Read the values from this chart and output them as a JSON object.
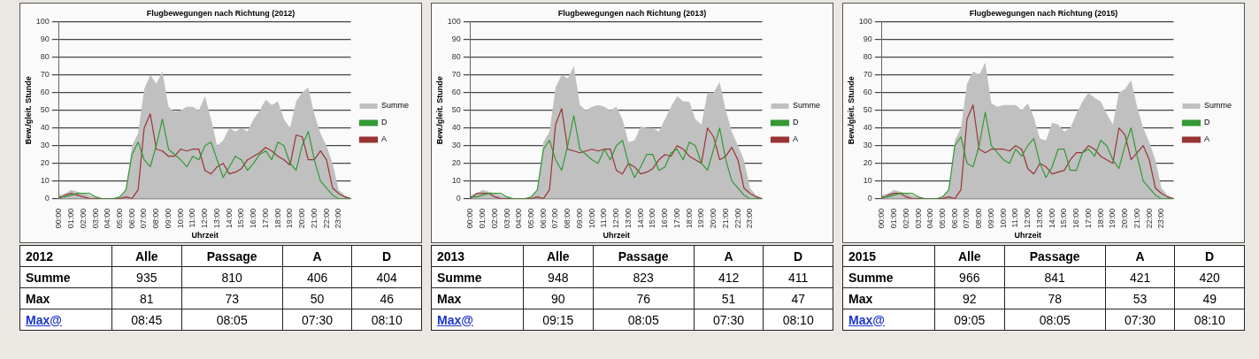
{
  "chart_data": [
    {
      "type": "line",
      "title": "Flugbewegungen nach Richtung (2012)",
      "xlabel": "Uhrzeit",
      "ylabel": "Bew./gleit. Stunde",
      "x": [
        0,
        0.5,
        1,
        1.5,
        2,
        2.5,
        3,
        3.5,
        4,
        4.5,
        5,
        5.5,
        6,
        6.5,
        7,
        7.5,
        8,
        8.5,
        9,
        9.5,
        10,
        10.5,
        11,
        11.5,
        12,
        12.5,
        13,
        13.5,
        14,
        14.5,
        15,
        15.5,
        16,
        16.5,
        17,
        17.5,
        18,
        18.5,
        19,
        19.5,
        20,
        20.5,
        21,
        21.5,
        22,
        22.5,
        23,
        23.5,
        24
      ],
      "xlim": [
        0,
        24
      ],
      "xticks": [
        {
          "value": 0,
          "label": "00:00"
        },
        {
          "value": 1,
          "label": "01:00"
        },
        {
          "value": 2,
          "label": "02:00"
        },
        {
          "value": 3,
          "label": "03:00"
        },
        {
          "value": 4,
          "label": "04:00"
        },
        {
          "value": 5,
          "label": "05:00"
        },
        {
          "value": 6,
          "label": "06:00"
        },
        {
          "value": 7,
          "label": "07:00"
        },
        {
          "value": 8,
          "label": "08:00"
        },
        {
          "value": 9,
          "label": "09:00"
        },
        {
          "value": 10,
          "label": "10:00"
        },
        {
          "value": 11,
          "label": "11:00"
        },
        {
          "value": 12,
          "label": "12:00"
        },
        {
          "value": 13,
          "label": "13:00"
        },
        {
          "value": 14,
          "label": "14:00"
        },
        {
          "value": 15,
          "label": "15:00"
        },
        {
          "value": 16,
          "label": "16:00"
        },
        {
          "value": 17,
          "label": "17:00"
        },
        {
          "value": 18,
          "label": "18:00"
        },
        {
          "value": 19,
          "label": "19:00"
        },
        {
          "value": 20,
          "label": "20:00"
        },
        {
          "value": 21,
          "label": "21:00"
        },
        {
          "value": 22,
          "label": "22:00"
        },
        {
          "value": 23,
          "label": "23:00"
        }
      ],
      "ylim": [
        0,
        100
      ],
      "yticks": [
        0,
        10,
        20,
        30,
        40,
        50,
        60,
        70,
        80,
        90,
        100
      ],
      "grid": "y",
      "legend": "right",
      "series": [
        {
          "name": "Summe",
          "type": "area",
          "color": "#c0c0c0",
          "values": [
            2,
            3,
            5,
            4,
            3,
            2,
            1,
            0,
            0,
            0,
            1,
            5,
            30,
            37,
            62,
            70,
            65,
            72,
            52,
            49,
            50,
            52,
            52,
            50,
            58,
            45,
            30,
            33,
            40,
            38,
            40,
            38,
            45,
            50,
            56,
            53,
            55,
            45,
            40,
            55,
            60,
            63,
            48,
            37,
            30,
            20,
            5,
            2,
            0
          ]
        },
        {
          "name": "D",
          "type": "line",
          "color": "#339933",
          "values": [
            1,
            1,
            2,
            3,
            3,
            3,
            1,
            0,
            0,
            0,
            1,
            5,
            25,
            32,
            22,
            18,
            30,
            45,
            28,
            25,
            22,
            18,
            24,
            22,
            30,
            32,
            22,
            12,
            18,
            24,
            22,
            16,
            20,
            25,
            27,
            22,
            32,
            30,
            20,
            16,
            30,
            38,
            22,
            10,
            6,
            2,
            0,
            0,
            0
          ]
        },
        {
          "name": "A",
          "type": "line",
          "color": "#993333",
          "values": [
            0,
            2,
            3,
            2,
            1,
            0,
            0,
            0,
            0,
            0,
            0,
            1,
            0,
            5,
            40,
            48,
            28,
            27,
            24,
            24,
            28,
            27,
            28,
            28,
            16,
            14,
            18,
            20,
            14,
            15,
            17,
            22,
            24,
            26,
            29,
            27,
            24,
            22,
            19,
            36,
            35,
            22,
            22,
            27,
            22,
            6,
            3,
            1,
            0
          ]
        }
      ]
    },
    {
      "type": "other",
      "title": "2012",
      "categories": [
        "Alle",
        "Passage",
        "A",
        "D"
      ],
      "y_categories": [
        "Summe",
        "Max",
        "Max@"
      ],
      "cell_labels": [
        [
          "935",
          "810",
          "406",
          "404"
        ],
        [
          "81",
          "73",
          "50",
          "46"
        ],
        [
          "08:45",
          "08:05",
          "07:30",
          "08:10"
        ]
      ]
    },
    {
      "type": "line",
      "title": "Flugbewegungen nach Richtung (2013)",
      "xlabel": "Uhrzeit",
      "ylabel": "Bew./gleit. Stunde",
      "x": [
        0,
        0.5,
        1,
        1.5,
        2,
        2.5,
        3,
        3.5,
        4,
        4.5,
        5,
        5.5,
        6,
        6.5,
        7,
        7.5,
        8,
        8.5,
        9,
        9.5,
        10,
        10.5,
        11,
        11.5,
        12,
        12.5,
        13,
        13.5,
        14,
        14.5,
        15,
        15.5,
        16,
        16.5,
        17,
        17.5,
        18,
        18.5,
        19,
        19.5,
        20,
        20.5,
        21,
        21.5,
        22,
        22.5,
        23,
        23.5,
        24
      ],
      "xlim": [
        0,
        24
      ],
      "xticks": [
        {
          "value": 0,
          "label": "00:00"
        },
        {
          "value": 1,
          "label": "01:00"
        },
        {
          "value": 2,
          "label": "02:00"
        },
        {
          "value": 3,
          "label": "03:00"
        },
        {
          "value": 4,
          "label": "04:00"
        },
        {
          "value": 5,
          "label": "05:00"
        },
        {
          "value": 6,
          "label": "06:00"
        },
        {
          "value": 7,
          "label": "07:00"
        },
        {
          "value": 8,
          "label": "08:00"
        },
        {
          "value": 9,
          "label": "09:00"
        },
        {
          "value": 10,
          "label": "10:00"
        },
        {
          "value": 11,
          "label": "11:00"
        },
        {
          "value": 12,
          "label": "12:00"
        },
        {
          "value": 13,
          "label": "13:00"
        },
        {
          "value": 14,
          "label": "14:00"
        },
        {
          "value": 15,
          "label": "15:00"
        },
        {
          "value": 16,
          "label": "16:00"
        },
        {
          "value": 17,
          "label": "17:00"
        },
        {
          "value": 18,
          "label": "18:00"
        },
        {
          "value": 19,
          "label": "19:00"
        },
        {
          "value": 20,
          "label": "20:00"
        },
        {
          "value": 21,
          "label": "21:00"
        },
        {
          "value": 22,
          "label": "22:00"
        },
        {
          "value": 23,
          "label": "23:00"
        }
      ],
      "ylim": [
        0,
        100
      ],
      "yticks": [
        0,
        10,
        20,
        30,
        40,
        50,
        60,
        70,
        80,
        90,
        100
      ],
      "grid": "y",
      "legend": "right",
      "series": [
        {
          "name": "Summe",
          "type": "area",
          "color": "#c0c0c0",
          "values": [
            2,
            3,
            5,
            4,
            3,
            2,
            1,
            0,
            0,
            0,
            1,
            5,
            32,
            38,
            63,
            70,
            68,
            75,
            53,
            50,
            52,
            53,
            52,
            50,
            52,
            45,
            32,
            33,
            41,
            40,
            40,
            38,
            45,
            52,
            58,
            55,
            55,
            45,
            42,
            60,
            60,
            66,
            50,
            38,
            30,
            22,
            6,
            2,
            0
          ]
        },
        {
          "name": "D",
          "type": "line",
          "color": "#339933",
          "values": [
            1,
            1,
            2,
            3,
            3,
            3,
            1,
            0,
            0,
            0,
            1,
            5,
            28,
            33,
            22,
            16,
            30,
            47,
            28,
            25,
            22,
            20,
            28,
            22,
            30,
            33,
            20,
            12,
            18,
            25,
            25,
            16,
            18,
            26,
            28,
            22,
            32,
            30,
            20,
            16,
            28,
            40,
            22,
            10,
            6,
            2,
            0,
            0,
            0
          ]
        },
        {
          "name": "A",
          "type": "line",
          "color": "#993333",
          "values": [
            0,
            3,
            3,
            3,
            1,
            0,
            0,
            0,
            0,
            0,
            0,
            1,
            0,
            5,
            42,
            51,
            28,
            27,
            26,
            27,
            28,
            27,
            28,
            28,
            16,
            14,
            20,
            18,
            14,
            15,
            17,
            22,
            25,
            24,
            30,
            28,
            24,
            22,
            20,
            40,
            35,
            22,
            24,
            29,
            22,
            6,
            3,
            1,
            0
          ]
        }
      ]
    },
    {
      "type": "other",
      "title": "2013",
      "categories": [
        "Alle",
        "Passage",
        "A",
        "D"
      ],
      "y_categories": [
        "Summe",
        "Max",
        "Max@"
      ],
      "cell_labels": [
        [
          "948",
          "823",
          "412",
          "411"
        ],
        [
          "90",
          "76",
          "51",
          "47"
        ],
        [
          "09:15",
          "08:05",
          "07:30",
          "08:10"
        ]
      ]
    },
    {
      "type": "line",
      "title": "Flugbewegungen nach Richtung (2015)",
      "xlabel": "Uhrzeit",
      "ylabel": "Bew./gleit. Stunde",
      "x": [
        0,
        0.5,
        1,
        1.5,
        2,
        2.5,
        3,
        3.5,
        4,
        4.5,
        5,
        5.5,
        6,
        6.5,
        7,
        7.5,
        8,
        8.5,
        9,
        9.5,
        10,
        10.5,
        11,
        11.5,
        12,
        12.5,
        13,
        13.5,
        14,
        14.5,
        15,
        15.5,
        16,
        16.5,
        17,
        17.5,
        18,
        18.5,
        19,
        19.5,
        20,
        20.5,
        21,
        21.5,
        22,
        22.5,
        23,
        23.5,
        24
      ],
      "xlim": [
        0,
        24
      ],
      "xticks": [
        {
          "value": 0,
          "label": "00:00"
        },
        {
          "value": 1,
          "label": "01:00"
        },
        {
          "value": 2,
          "label": "02:00"
        },
        {
          "value": 3,
          "label": "03:00"
        },
        {
          "value": 4,
          "label": "04:00"
        },
        {
          "value": 5,
          "label": "05:00"
        },
        {
          "value": 6,
          "label": "06:00"
        },
        {
          "value": 7,
          "label": "07:00"
        },
        {
          "value": 8,
          "label": "08:00"
        },
        {
          "value": 9,
          "label": "09:00"
        },
        {
          "value": 10,
          "label": "10:00"
        },
        {
          "value": 11,
          "label": "11:00"
        },
        {
          "value": 12,
          "label": "12:00"
        },
        {
          "value": 13,
          "label": "13:00"
        },
        {
          "value": 14,
          "label": "14:00"
        },
        {
          "value": 15,
          "label": "15:00"
        },
        {
          "value": 16,
          "label": "16:00"
        },
        {
          "value": 17,
          "label": "17:00"
        },
        {
          "value": 18,
          "label": "18:00"
        },
        {
          "value": 19,
          "label": "19:00"
        },
        {
          "value": 20,
          "label": "20:00"
        },
        {
          "value": 21,
          "label": "21:00"
        },
        {
          "value": 22,
          "label": "22:00"
        },
        {
          "value": 23,
          "label": "23:00"
        }
      ],
      "ylim": [
        0,
        100
      ],
      "yticks": [
        0,
        10,
        20,
        30,
        40,
        50,
        60,
        70,
        80,
        90,
        100
      ],
      "grid": "y",
      "legend": "right",
      "series": [
        {
          "name": "Summe",
          "type": "area",
          "color": "#c0c0c0",
          "values": [
            2,
            3,
            5,
            4,
            3,
            2,
            1,
            0,
            0,
            0,
            1,
            5,
            33,
            40,
            65,
            72,
            70,
            77,
            54,
            52,
            53,
            53,
            53,
            50,
            54,
            46,
            34,
            33,
            43,
            42,
            38,
            40,
            48,
            55,
            60,
            57,
            55,
            48,
            42,
            60,
            62,
            67,
            52,
            40,
            32,
            22,
            6,
            2,
            0
          ]
        },
        {
          "name": "D",
          "type": "line",
          "color": "#339933",
          "values": [
            1,
            1,
            2,
            3,
            3,
            3,
            1,
            0,
            0,
            0,
            1,
            5,
            30,
            35,
            20,
            18,
            30,
            49,
            30,
            26,
            22,
            20,
            28,
            24,
            30,
            34,
            20,
            12,
            18,
            28,
            28,
            16,
            16,
            26,
            28,
            24,
            33,
            30,
            22,
            17,
            30,
            40,
            24,
            10,
            6,
            2,
            0,
            0,
            0
          ]
        },
        {
          "name": "A",
          "type": "line",
          "color": "#993333",
          "values": [
            0,
            2,
            3,
            3,
            1,
            0,
            0,
            0,
            0,
            0,
            0,
            1,
            0,
            5,
            45,
            53,
            28,
            26,
            28,
            28,
            28,
            27,
            30,
            28,
            17,
            14,
            20,
            18,
            14,
            15,
            16,
            22,
            26,
            26,
            30,
            28,
            24,
            22,
            20,
            40,
            36,
            22,
            26,
            30,
            22,
            6,
            3,
            1,
            0
          ]
        }
      ]
    },
    {
      "type": "other",
      "title": "2015",
      "categories": [
        "Alle",
        "Passage",
        "A",
        "D"
      ],
      "y_categories": [
        "Summe",
        "Max",
        "Max@"
      ],
      "cell_labels": [
        [
          "966",
          "841",
          "421",
          "420"
        ],
        [
          "92",
          "78",
          "53",
          "49"
        ],
        [
          "09:05",
          "08:05",
          "07:30",
          "08:10"
        ]
      ]
    }
  ]
}
